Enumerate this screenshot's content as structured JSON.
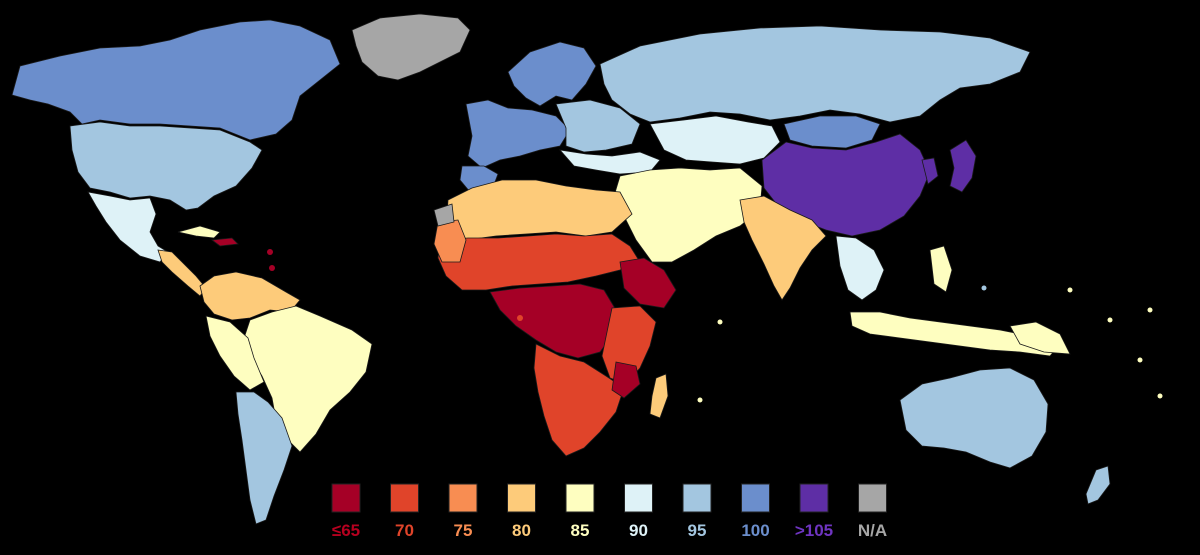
{
  "map": {
    "colors": {
      "le65": "#a50026",
      "v70": "#e0442a",
      "v75": "#f88d52",
      "v80": "#fdcb7a",
      "v85": "#fefec0",
      "v90": "#def2f7",
      "v95": "#a3c6e0",
      "v100": "#6b8ecc",
      "gt105": "#5e2ea5",
      "na": "#a6a6a6",
      "ocean": "#000000"
    }
  },
  "legend": {
    "items": [
      {
        "key": "le65",
        "label": "≤65",
        "color": "#a50026",
        "text_color": "#b5001f"
      },
      {
        "key": "v70",
        "label": "70",
        "color": "#e0442a",
        "text_color": "#e0442a"
      },
      {
        "key": "v75",
        "label": "75",
        "color": "#f88d52",
        "text_color": "#f88d52"
      },
      {
        "key": "v80",
        "label": "80",
        "color": "#fdcb7a",
        "text_color": "#fdcb7a"
      },
      {
        "key": "v85",
        "label": "85",
        "color": "#fefec0",
        "text_color": "#fefec0"
      },
      {
        "key": "v90",
        "label": "90",
        "color": "#def2f7",
        "text_color": "#def2f7"
      },
      {
        "key": "v95",
        "label": "95",
        "color": "#a3c6e0",
        "text_color": "#a3c6e0"
      },
      {
        "key": "v100",
        "label": "100",
        "color": "#6b8ecc",
        "text_color": "#6b8ecc"
      },
      {
        "key": "gt105",
        "label": ">105",
        "color": "#5e2ea5",
        "text_color": "#6e34c0"
      },
      {
        "key": "na",
        "label": "N/A",
        "color": "#a6a6a6",
        "text_color": "#a6a6a6"
      }
    ]
  }
}
